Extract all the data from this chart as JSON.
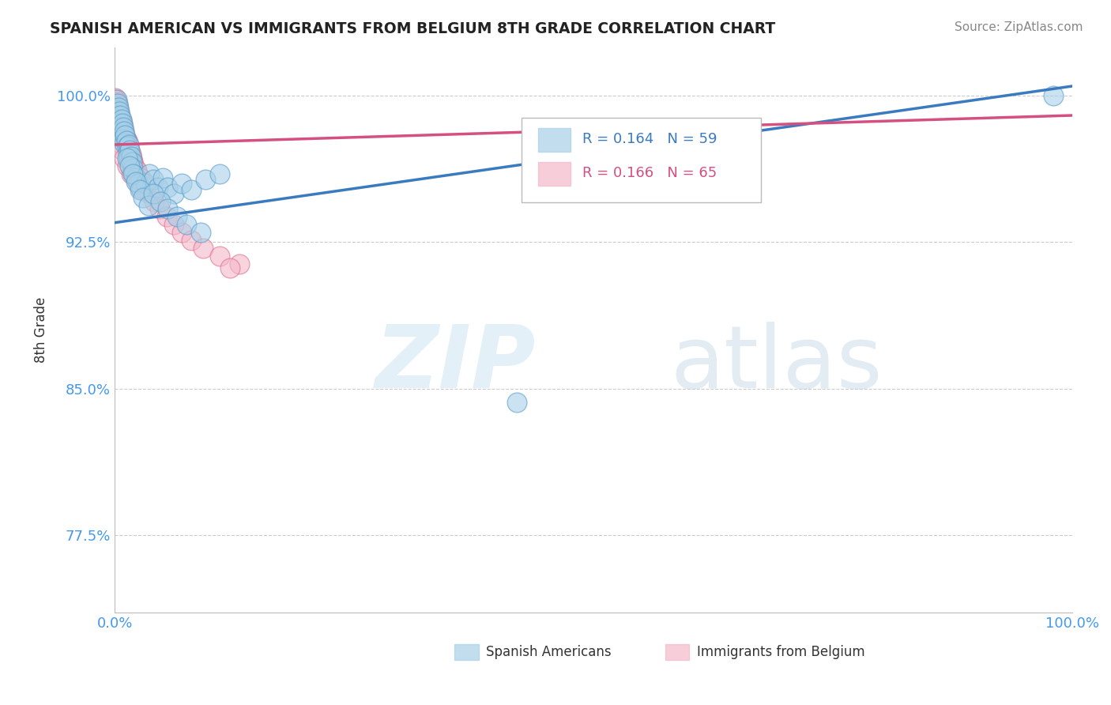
{
  "title": "SPANISH AMERICAN VS IMMIGRANTS FROM BELGIUM 8TH GRADE CORRELATION CHART",
  "source": "Source: ZipAtlas.com",
  "ylabel": "8th Grade",
  "xlim": [
    0,
    1.0
  ],
  "ylim": [
    0.735,
    1.025
  ],
  "yticks": [
    0.775,
    0.85,
    0.925,
    1.0
  ],
  "ytick_labels": [
    "77.5%",
    "85.0%",
    "92.5%",
    "100.0%"
  ],
  "legend_r1": "R = 0.164",
  "legend_n1": "N = 59",
  "legend_r2": "R = 0.166",
  "legend_n2": "N = 65",
  "color_blue": "#a8d0e8",
  "color_pink": "#f4b8cb",
  "color_blue_edge": "#5b9ec9",
  "color_pink_edge": "#e07090",
  "color_blue_line": "#3a7bbf",
  "color_pink_line": "#d45080",
  "color_tick_label": "#4499ee",
  "blue_x": [
    0.001,
    0.002,
    0.002,
    0.003,
    0.003,
    0.004,
    0.004,
    0.005,
    0.005,
    0.006,
    0.006,
    0.007,
    0.007,
    0.008,
    0.008,
    0.009,
    0.009,
    0.01,
    0.01,
    0.011,
    0.012,
    0.013,
    0.014,
    0.015,
    0.015,
    0.016,
    0.017,
    0.018,
    0.019,
    0.02,
    0.022,
    0.025,
    0.028,
    0.032,
    0.036,
    0.04,
    0.045,
    0.05,
    0.055,
    0.062,
    0.07,
    0.08,
    0.095,
    0.11,
    0.013,
    0.016,
    0.019,
    0.022,
    0.026,
    0.03,
    0.035,
    0.04,
    0.048,
    0.055,
    0.065,
    0.075,
    0.09,
    0.98,
    0.42
  ],
  "blue_y": [
    0.995,
    0.998,
    0.993,
    0.996,
    0.99,
    0.994,
    0.988,
    0.992,
    0.986,
    0.99,
    0.984,
    0.988,
    0.982,
    0.986,
    0.98,
    0.984,
    0.978,
    0.982,
    0.976,
    0.98,
    0.977,
    0.974,
    0.971,
    0.975,
    0.968,
    0.972,
    0.969,
    0.966,
    0.963,
    0.96,
    0.958,
    0.955,
    0.952,
    0.955,
    0.96,
    0.957,
    0.953,
    0.958,
    0.953,
    0.95,
    0.955,
    0.952,
    0.957,
    0.96,
    0.968,
    0.964,
    0.96,
    0.956,
    0.952,
    0.948,
    0.944,
    0.95,
    0.946,
    0.942,
    0.938,
    0.934,
    0.93,
    1.0,
    0.843
  ],
  "pink_x": [
    0.001,
    0.001,
    0.002,
    0.002,
    0.003,
    0.003,
    0.004,
    0.004,
    0.005,
    0.005,
    0.006,
    0.006,
    0.007,
    0.007,
    0.008,
    0.008,
    0.009,
    0.009,
    0.01,
    0.01,
    0.011,
    0.012,
    0.013,
    0.014,
    0.015,
    0.016,
    0.017,
    0.018,
    0.019,
    0.02,
    0.022,
    0.024,
    0.026,
    0.028,
    0.032,
    0.004,
    0.006,
    0.008,
    0.01,
    0.013,
    0.016,
    0.019,
    0.023,
    0.027,
    0.031,
    0.036,
    0.041,
    0.047,
    0.054,
    0.062,
    0.07,
    0.08,
    0.092,
    0.11,
    0.13,
    0.015,
    0.018,
    0.022,
    0.026,
    0.12,
    0.006,
    0.008,
    0.01,
    0.013,
    0.017
  ],
  "pink_y": [
    0.999,
    0.998,
    0.997,
    0.996,
    0.995,
    0.994,
    0.993,
    0.992,
    0.991,
    0.99,
    0.989,
    0.988,
    0.987,
    0.986,
    0.985,
    0.984,
    0.983,
    0.982,
    0.981,
    0.98,
    0.979,
    0.978,
    0.977,
    0.976,
    0.974,
    0.972,
    0.97,
    0.968,
    0.966,
    0.964,
    0.962,
    0.96,
    0.958,
    0.956,
    0.952,
    0.99,
    0.986,
    0.982,
    0.978,
    0.974,
    0.97,
    0.966,
    0.962,
    0.958,
    0.954,
    0.95,
    0.946,
    0.942,
    0.938,
    0.934,
    0.93,
    0.926,
    0.922,
    0.918,
    0.914,
    0.965,
    0.961,
    0.957,
    0.953,
    0.912,
    0.976,
    0.972,
    0.968,
    0.964,
    0.96
  ]
}
